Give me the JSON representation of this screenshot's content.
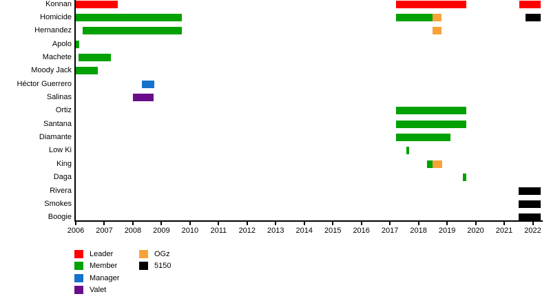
{
  "chart_data": {
    "type": "gantt",
    "title": "",
    "x_axis": {
      "min": 2006,
      "max": 2022.3,
      "tick_years": [
        2006,
        2007,
        2008,
        2009,
        2010,
        2011,
        2012,
        2013,
        2014,
        2015,
        2016,
        2017,
        2018,
        2019,
        2020,
        2021,
        2022
      ]
    },
    "role_colors": {
      "Leader": "#FE0000",
      "Member": "#00A100",
      "Manager": "#1673CD",
      "Valet": "#6A0D8A",
      "OGz": "#F8A33A",
      "5150": "#000000"
    },
    "rows": [
      {
        "name": "Konnan",
        "segments": [
          {
            "start": 2006.0,
            "end": 2007.47,
            "role": "Leader"
          },
          {
            "start": 2017.21,
            "end": 2019.67,
            "role": "Leader"
          },
          {
            "start": 2021.52,
            "end": 2022.27,
            "role": "Leader"
          }
        ]
      },
      {
        "name": "Homicide",
        "segments": [
          {
            "start": 2006.0,
            "end": 2009.71,
            "role": "Member"
          },
          {
            "start": 2017.21,
            "end": 2018.49,
            "role": "Member"
          },
          {
            "start": 2018.49,
            "end": 2018.8,
            "role": "OGz"
          },
          {
            "start": 2021.74,
            "end": 2022.28,
            "role": "5150"
          }
        ]
      },
      {
        "name": "Hernandez",
        "segments": [
          {
            "start": 2006.24,
            "end": 2009.71,
            "role": "Member"
          },
          {
            "start": 2018.49,
            "end": 2018.8,
            "role": "OGz"
          }
        ]
      },
      {
        "name": "Apolo",
        "segments": [
          {
            "start": 2006.0,
            "end": 2006.12,
            "role": "Member"
          }
        ]
      },
      {
        "name": "Machete",
        "segments": [
          {
            "start": 2006.1,
            "end": 2007.23,
            "role": "Member"
          }
        ]
      },
      {
        "name": "Moody Jack",
        "segments": [
          {
            "start": 2006.0,
            "end": 2006.77,
            "role": "Member"
          }
        ]
      },
      {
        "name": "Héctor Guerrero",
        "segments": [
          {
            "start": 2008.31,
            "end": 2008.75,
            "role": "Manager"
          }
        ]
      },
      {
        "name": "Salinas",
        "segments": [
          {
            "start": 2008.0,
            "end": 2008.72,
            "role": "Valet"
          }
        ]
      },
      {
        "name": "Ortiz",
        "segments": [
          {
            "start": 2017.21,
            "end": 2019.67,
            "role": "Member"
          }
        ]
      },
      {
        "name": "Santana",
        "segments": [
          {
            "start": 2017.21,
            "end": 2019.67,
            "role": "Member"
          }
        ]
      },
      {
        "name": "Diamante",
        "segments": [
          {
            "start": 2017.21,
            "end": 2019.12,
            "role": "Member"
          }
        ]
      },
      {
        "name": "Low Ki",
        "segments": [
          {
            "start": 2017.57,
            "end": 2017.67,
            "role": "Member"
          }
        ]
      },
      {
        "name": "King",
        "segments": [
          {
            "start": 2018.3,
            "end": 2018.49,
            "role": "Member"
          },
          {
            "start": 2018.49,
            "end": 2018.83,
            "role": "OGz"
          }
        ]
      },
      {
        "name": "Daga",
        "segments": [
          {
            "start": 2019.55,
            "end": 2019.67,
            "role": "Member"
          }
        ]
      },
      {
        "name": "Rivera",
        "segments": [
          {
            "start": 2021.5,
            "end": 2022.28,
            "role": "5150"
          }
        ]
      },
      {
        "name": "Smokes",
        "segments": [
          {
            "start": 2021.5,
            "end": 2022.28,
            "role": "5150"
          }
        ]
      },
      {
        "name": "Boogie",
        "segments": [
          {
            "start": 2021.5,
            "end": 2022.28,
            "role": "5150"
          }
        ]
      }
    ],
    "legend": {
      "position": "bottom-left",
      "columns": [
        [
          "Leader",
          "Member",
          "Manager",
          "Valet"
        ],
        [
          "OGz",
          "5150"
        ]
      ]
    },
    "grid": false
  }
}
